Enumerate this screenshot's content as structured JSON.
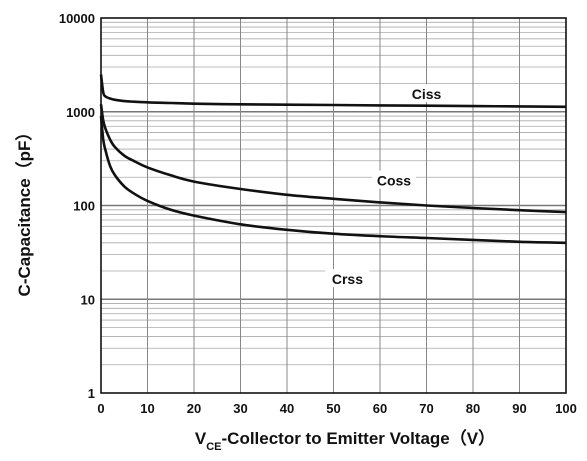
{
  "chart_data": {
    "type": "line",
    "xlabel_main": "V",
    "xlabel_sub": "CE",
    "xlabel_rest": "-Collector to Emitter Voltage（V）",
    "ylabel": "C-Capacitance（pF）",
    "xlim": [
      0,
      100
    ],
    "ylim": [
      1,
      10000
    ],
    "yscale": "log",
    "grid": true,
    "x_ticks": [
      "0",
      "10",
      "20",
      "30",
      "40",
      "50",
      "60",
      "70",
      "80",
      "90",
      "100"
    ],
    "y_ticks": [
      "1",
      "10",
      "100",
      "1000",
      "10000"
    ],
    "x": [
      0,
      0.5,
      1,
      2,
      3,
      5,
      7,
      10,
      15,
      20,
      30,
      40,
      50,
      60,
      70,
      80,
      90,
      100
    ],
    "series": [
      {
        "name": "Ciss",
        "values": [
          2500,
          1600,
          1450,
          1380,
          1340,
          1300,
          1280,
          1260,
          1240,
          1220,
          1200,
          1190,
          1180,
          1170,
          1160,
          1150,
          1140,
          1130
        ]
      },
      {
        "name": "Coss",
        "values": [
          1200,
          800,
          650,
          500,
          420,
          340,
          300,
          255,
          210,
          180,
          150,
          130,
          118,
          108,
          100,
          94,
          89,
          85
        ]
      },
      {
        "name": "Crss",
        "values": [
          900,
          500,
          380,
          260,
          210,
          160,
          135,
          112,
          90,
          78,
          63,
          55,
          50,
          47,
          45,
          43,
          41,
          40
        ]
      }
    ]
  }
}
